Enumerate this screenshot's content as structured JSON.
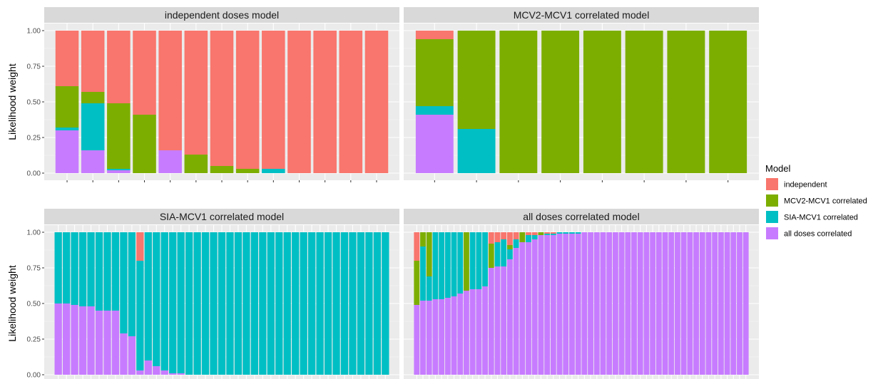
{
  "chart_data": {
    "type": "bar",
    "stacked": true,
    "ylabel": "Likelihood weight",
    "ylim": [
      0,
      1
    ],
    "yticks": [
      "0.00",
      "0.25",
      "0.50",
      "0.75",
      "1.00"
    ],
    "legend": {
      "title": "Model",
      "position": "right",
      "entries": [
        {
          "name": "independent",
          "color": "#F8766D"
        },
        {
          "name": "MCV2-MCV1 correlated",
          "color": "#7CAE00"
        },
        {
          "name": "SIA-MCV1 correlated",
          "color": "#00BFC4"
        },
        {
          "name": "all doses correlated",
          "color": "#C77CFF"
        }
      ]
    },
    "stack_order_bottom_to_top": [
      "all doses correlated",
      "SIA-MCV1 correlated",
      "MCV2-MCV1 correlated",
      "independent"
    ],
    "panels": [
      {
        "title": "independent doses model",
        "bars": [
          [
            0.3,
            0.02,
            0.29,
            0.39
          ],
          [
            0.16,
            0.33,
            0.08,
            0.43
          ],
          [
            0.02,
            0.01,
            0.46,
            0.51
          ],
          [
            0.0,
            0.0,
            0.41,
            0.59
          ],
          [
            0.16,
            0.0,
            0.0,
            0.84
          ],
          [
            0.0,
            0.0,
            0.13,
            0.87
          ],
          [
            0.0,
            0.0,
            0.05,
            0.95
          ],
          [
            0.0,
            0.0,
            0.03,
            0.97
          ],
          [
            0.0,
            0.03,
            0.0,
            0.97
          ],
          [
            0.0,
            0.0,
            0.0,
            1.0
          ],
          [
            0.0,
            0.0,
            0.0,
            1.0
          ],
          [
            0.0,
            0.0,
            0.0,
            1.0
          ],
          [
            0.0,
            0.0,
            0.0,
            1.0
          ]
        ]
      },
      {
        "title": "MCV2-MCV1 correlated model",
        "bars": [
          [
            0.41,
            0.06,
            0.47,
            0.06
          ],
          [
            0.0,
            0.31,
            0.69,
            0.0
          ],
          [
            0.0,
            0.0,
            1.0,
            0.0
          ],
          [
            0.0,
            0.0,
            1.0,
            0.0
          ],
          [
            0.0,
            0.0,
            1.0,
            0.0
          ],
          [
            0.0,
            0.0,
            1.0,
            0.0
          ],
          [
            0.0,
            0.0,
            1.0,
            0.0
          ],
          [
            0.0,
            0.0,
            1.0,
            0.0
          ]
        ]
      },
      {
        "title": "SIA-MCV1 correlated model",
        "bars": [
          [
            0.5,
            0.5,
            0,
            0
          ],
          [
            0.5,
            0.5,
            0,
            0
          ],
          [
            0.49,
            0.51,
            0,
            0
          ],
          [
            0.48,
            0.52,
            0,
            0
          ],
          [
            0.48,
            0.52,
            0,
            0
          ],
          [
            0.45,
            0.55,
            0,
            0
          ],
          [
            0.45,
            0.55,
            0,
            0
          ],
          [
            0.45,
            0.55,
            0,
            0
          ],
          [
            0.29,
            0.71,
            0,
            0
          ],
          [
            0.27,
            0.73,
            0,
            0
          ],
          [
            0.03,
            0.77,
            0,
            0.2
          ],
          [
            0.1,
            0.9,
            0,
            0
          ],
          [
            0.06,
            0.94,
            0,
            0
          ],
          [
            0.03,
            0.97,
            0,
            0
          ],
          [
            0.01,
            0.99,
            0,
            0
          ],
          [
            0.01,
            0.99,
            0,
            0
          ],
          [
            0.0,
            1.0,
            0,
            0
          ],
          [
            0.0,
            1.0,
            0,
            0
          ],
          [
            0.0,
            1.0,
            0,
            0
          ],
          [
            0.0,
            1.0,
            0,
            0
          ],
          [
            0.0,
            1.0,
            0,
            0
          ],
          [
            0.0,
            1.0,
            0,
            0
          ],
          [
            0.0,
            1.0,
            0,
            0
          ],
          [
            0.0,
            1.0,
            0,
            0
          ],
          [
            0.0,
            1.0,
            0,
            0
          ],
          [
            0.0,
            1.0,
            0,
            0
          ],
          [
            0.0,
            1.0,
            0,
            0
          ],
          [
            0.0,
            1.0,
            0,
            0
          ],
          [
            0.0,
            1.0,
            0,
            0
          ],
          [
            0.0,
            1.0,
            0,
            0
          ],
          [
            0.0,
            1.0,
            0,
            0
          ],
          [
            0.0,
            1.0,
            0,
            0
          ],
          [
            0.0,
            1.0,
            0,
            0
          ],
          [
            0.0,
            1.0,
            0,
            0
          ],
          [
            0.0,
            1.0,
            0,
            0
          ],
          [
            0.0,
            1.0,
            0,
            0
          ],
          [
            0.0,
            1.0,
            0,
            0
          ],
          [
            0.0,
            1.0,
            0,
            0
          ],
          [
            0.0,
            1.0,
            0,
            0
          ],
          [
            0.0,
            1.0,
            0,
            0
          ],
          [
            0.0,
            1.0,
            0,
            0
          ]
        ]
      },
      {
        "title": "all doses correlated model",
        "bars": [
          [
            0.49,
            0.0,
            0.31,
            0.2
          ],
          [
            0.52,
            0.38,
            0.1,
            0.0
          ],
          [
            0.52,
            0.17,
            0.31,
            0.0
          ],
          [
            0.53,
            0.47,
            0.0,
            0.0
          ],
          [
            0.53,
            0.47,
            0.0,
            0.0
          ],
          [
            0.54,
            0.46,
            0.0,
            0.0
          ],
          [
            0.55,
            0.45,
            0.0,
            0.0
          ],
          [
            0.57,
            0.43,
            0.0,
            0.0
          ],
          [
            0.59,
            0.0,
            0.41,
            0.0
          ],
          [
            0.6,
            0.4,
            0.0,
            0.0
          ],
          [
            0.6,
            0.4,
            0.0,
            0.0
          ],
          [
            0.62,
            0.38,
            0.0,
            0.0
          ],
          [
            0.75,
            0.0,
            0.17,
            0.08
          ],
          [
            0.76,
            0.17,
            0.0,
            0.07
          ],
          [
            0.76,
            0.19,
            0.0,
            0.05
          ],
          [
            0.81,
            0.07,
            0.03,
            0.09
          ],
          [
            0.89,
            0.06,
            0.0,
            0.05
          ],
          [
            0.93,
            0.0,
            0.07,
            0.0
          ],
          [
            0.93,
            0.05,
            0.0,
            0.02
          ],
          [
            0.95,
            0.03,
            0.0,
            0.02
          ],
          [
            0.98,
            0.0,
            0.02,
            0.0
          ],
          [
            0.98,
            0.01,
            0.0,
            0.01
          ],
          [
            0.98,
            0.01,
            0.0,
            0.01
          ],
          [
            0.99,
            0.01,
            0.0,
            0.0
          ],
          [
            0.99,
            0.01,
            0.0,
            0.0
          ],
          [
            0.99,
            0.01,
            0.0,
            0.0
          ],
          [
            0.99,
            0.01,
            0.0,
            0.0
          ],
          [
            1.0,
            0,
            0,
            0
          ],
          [
            1.0,
            0,
            0,
            0
          ],
          [
            1.0,
            0,
            0,
            0
          ],
          [
            1.0,
            0,
            0,
            0
          ],
          [
            1.0,
            0,
            0,
            0
          ],
          [
            1.0,
            0,
            0,
            0
          ],
          [
            1.0,
            0,
            0,
            0
          ],
          [
            1.0,
            0,
            0,
            0
          ],
          [
            1.0,
            0,
            0,
            0
          ],
          [
            1.0,
            0,
            0,
            0
          ],
          [
            1.0,
            0,
            0,
            0
          ],
          [
            1.0,
            0,
            0,
            0
          ],
          [
            1.0,
            0,
            0,
            0
          ],
          [
            1.0,
            0,
            0,
            0
          ],
          [
            1.0,
            0,
            0,
            0
          ],
          [
            1.0,
            0,
            0,
            0
          ],
          [
            1.0,
            0,
            0,
            0
          ],
          [
            1.0,
            0,
            0,
            0
          ],
          [
            1.0,
            0,
            0,
            0
          ],
          [
            1.0,
            0,
            0,
            0
          ],
          [
            1.0,
            0,
            0,
            0
          ],
          [
            1.0,
            0,
            0,
            0
          ],
          [
            1.0,
            0,
            0,
            0
          ],
          [
            1.0,
            0,
            0,
            0
          ],
          [
            1.0,
            0,
            0,
            0
          ],
          [
            1.0,
            0,
            0,
            0
          ],
          [
            1.0,
            0,
            0,
            0
          ]
        ]
      }
    ]
  }
}
